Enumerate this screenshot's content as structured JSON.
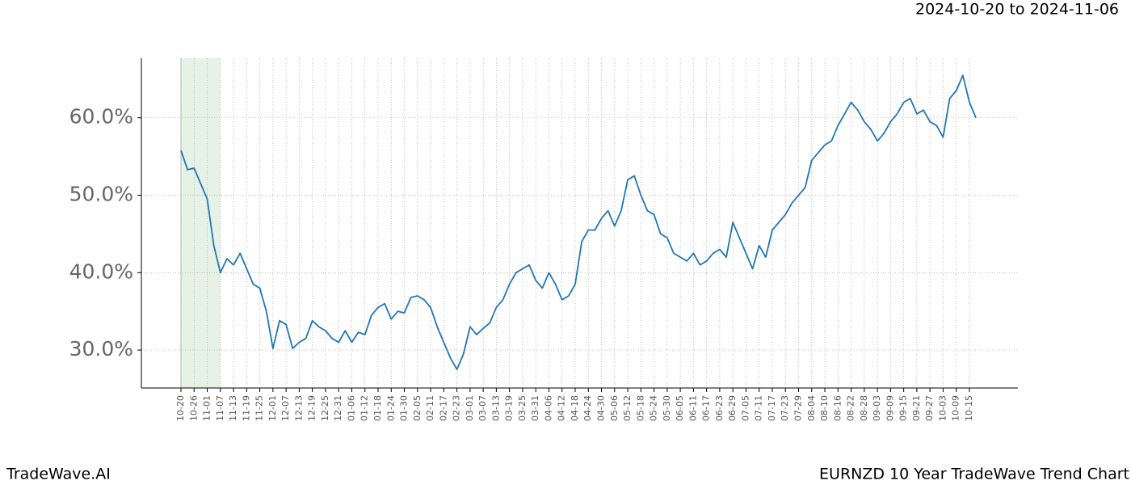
{
  "chart_data": {
    "type": "line",
    "title": "EURNZD 10 Year TradeWave Trend Chart",
    "date_range": "2024-10-20 to 2024-11-06",
    "watermark": "TradeWave.AI",
    "x": [
      "10-20",
      "10-23",
      "10-26",
      "10-29",
      "11-01",
      "11-04",
      "11-07",
      "11-10",
      "11-13",
      "11-16",
      "11-19",
      "11-22",
      "11-25",
      "11-28",
      "12-01",
      "12-04",
      "12-07",
      "12-10",
      "12-13",
      "12-16",
      "12-19",
      "12-22",
      "12-25",
      "12-28",
      "12-31",
      "01-03",
      "01-06",
      "01-09",
      "01-12",
      "01-15",
      "01-18",
      "01-21",
      "01-24",
      "01-27",
      "01-30",
      "02-02",
      "02-05",
      "02-08",
      "02-11",
      "02-14",
      "02-17",
      "02-20",
      "02-23",
      "02-26",
      "03-01",
      "03-04",
      "03-07",
      "03-10",
      "03-13",
      "03-16",
      "03-19",
      "03-22",
      "03-25",
      "03-28",
      "03-31",
      "04-03",
      "04-06",
      "04-09",
      "04-12",
      "04-15",
      "04-18",
      "04-21",
      "04-24",
      "04-27",
      "04-30",
      "05-03",
      "05-06",
      "05-09",
      "05-12",
      "05-15",
      "05-18",
      "05-21",
      "05-24",
      "05-27",
      "05-30",
      "06-02",
      "06-05",
      "06-08",
      "06-11",
      "06-14",
      "06-17",
      "06-20",
      "06-23",
      "06-26",
      "06-29",
      "07-02",
      "07-05",
      "07-08",
      "07-11",
      "07-14",
      "07-17",
      "07-20",
      "07-23",
      "07-26",
      "07-29",
      "08-01",
      "08-04",
      "08-07",
      "08-10",
      "08-13",
      "08-16",
      "08-19",
      "08-22",
      "08-25",
      "08-28",
      "08-31",
      "09-03",
      "09-06",
      "09-09",
      "09-12",
      "09-15",
      "09-18",
      "09-21",
      "09-24",
      "09-27",
      "09-30",
      "10-03",
      "10-06",
      "10-09",
      "10-12",
      "10-15",
      "10-18"
    ],
    "series": [
      {
        "color": "#1f77b4",
        "values": [
          55.8,
          53.3,
          53.5,
          51.5,
          49.5,
          43.5,
          40,
          41.8,
          41,
          42.5,
          40.5,
          38.5,
          38,
          35,
          30.2,
          33.8,
          33.3,
          30.2,
          31,
          31.5,
          33.8,
          33,
          32.5,
          31.5,
          31,
          32.5,
          31,
          32.3,
          32,
          34.5,
          35.5,
          36,
          34,
          35,
          34.8,
          36.8,
          37,
          36.5,
          35.5,
          33,
          31,
          29,
          27.5,
          29.5,
          33,
          32,
          32.8,
          33.5,
          35.5,
          36.5,
          38.5,
          40,
          40.5,
          41,
          39,
          38,
          40,
          38.5,
          36.5,
          37,
          38.5,
          44,
          45.5,
          45.5,
          47,
          48,
          46,
          48,
          52,
          52.5,
          50,
          48,
          47.5,
          45,
          44.5,
          42.5,
          42,
          41.5,
          42.5,
          41,
          41.5,
          42.5,
          43,
          42,
          46.5,
          44.5,
          42.5,
          40.5,
          43.5,
          42,
          45.5,
          46.5,
          47.5,
          49,
          50,
          51,
          54.5,
          55.5,
          56.5,
          57,
          59,
          60.5,
          62,
          61,
          59.5,
          58.5,
          57,
          58,
          59.5,
          60.5,
          62,
          62.5,
          60.5,
          61,
          59.5,
          59,
          57.5,
          62.5,
          63.5,
          65.5,
          62,
          60
        ]
      }
    ],
    "xticks": [
      "10-20",
      "10-26",
      "11-01",
      "11-07",
      "11-13",
      "11-19",
      "11-25",
      "12-01",
      "12-07",
      "12-13",
      "12-19",
      "12-25",
      "12-31",
      "01-06",
      "01-12",
      "01-18",
      "01-24",
      "01-30",
      "02-05",
      "02-11",
      "02-17",
      "02-23",
      "03-01",
      "03-07",
      "03-13",
      "03-19",
      "03-25",
      "03-31",
      "04-06",
      "04-12",
      "04-18",
      "04-24",
      "04-30",
      "05-06",
      "05-12",
      "05-18",
      "05-24",
      "05-30",
      "06-05",
      "06-11",
      "06-17",
      "06-23",
      "06-29",
      "07-05",
      "07-11",
      "07-17",
      "07-23",
      "07-29",
      "08-04",
      "08-10",
      "08-16",
      "08-22",
      "08-28",
      "09-03",
      "09-09",
      "09-15",
      "09-21",
      "09-27",
      "10-03",
      "10-09",
      "10-15"
    ],
    "ylim": [
      25.1,
      67.7
    ],
    "yticks": [
      {
        "value": 30,
        "label": "30.0%"
      },
      {
        "value": 40,
        "label": "40.0%"
      },
      {
        "value": 50,
        "label": "50.0%"
      },
      {
        "value": 60,
        "label": "60.0%"
      }
    ],
    "highlight": {
      "from": "10-20",
      "to": "11-07",
      "color": "#e6f2e6"
    },
    "grid": true
  }
}
